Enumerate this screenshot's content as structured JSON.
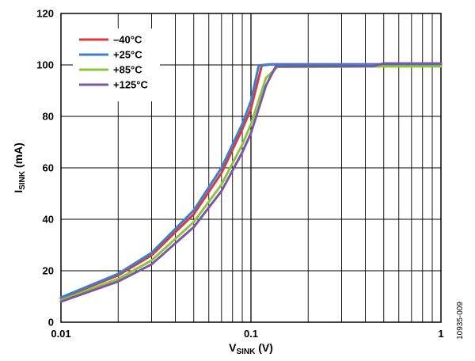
{
  "figure_id": "10935-009",
  "chart_data": {
    "type": "line",
    "xscale": "log",
    "xlim": [
      0.01,
      1
    ],
    "ylim": [
      0,
      120
    ],
    "xticks": [
      0.01,
      0.1,
      1
    ],
    "xtick_labels": [
      "0.01",
      "0.1",
      "1"
    ],
    "yticks": [
      0,
      20,
      40,
      60,
      80,
      100,
      120
    ],
    "ytick_labels": [
      "0",
      "20",
      "40",
      "60",
      "80",
      "100",
      "120"
    ],
    "xlabel": {
      "main": "V",
      "sub": "SINK",
      "unit": " (V)"
    },
    "ylabel": {
      "main": "I",
      "sub": "SINK",
      "unit": " (mA)"
    },
    "grid": true,
    "legend_position": "top-left",
    "series": [
      {
        "name": "–40°C",
        "color": "#d93a3a",
        "x": [
          0.01,
          0.02,
          0.03,
          0.05,
          0.07,
          0.09,
          0.1,
          0.114,
          0.13,
          0.2,
          0.5,
          1
        ],
        "y": [
          9.3,
          18.2,
          26,
          42,
          58,
          75,
          83,
          99.8,
          100.2,
          100.2,
          100.2,
          100.2
        ]
      },
      {
        "name": "+25°C",
        "color": "#3a7fd0",
        "x": [
          0.01,
          0.02,
          0.03,
          0.05,
          0.07,
          0.09,
          0.1,
          0.11,
          0.125,
          0.2,
          0.5,
          1
        ],
        "y": [
          9.6,
          18.8,
          27,
          43.5,
          60,
          77,
          86,
          99.8,
          100.2,
          100.2,
          100.2,
          100.2
        ]
      },
      {
        "name": "+85°C",
        "color": "#8cc43e",
        "x": [
          0.01,
          0.02,
          0.03,
          0.05,
          0.07,
          0.09,
          0.1,
          0.12,
          0.138,
          0.2,
          0.5,
          1
        ],
        "y": [
          8.6,
          16.8,
          24,
          39,
          53.5,
          69,
          77,
          95,
          99.2,
          99.2,
          99.4,
          99.4
        ]
      },
      {
        "name": "+125°C",
        "color": "#7b55a8",
        "x": [
          0.01,
          0.02,
          0.03,
          0.05,
          0.07,
          0.09,
          0.1,
          0.12,
          0.135,
          0.2,
          0.44,
          0.5,
          1
        ],
        "y": [
          8,
          15.8,
          22.5,
          37,
          51,
          66,
          73.5,
          92,
          99.4,
          99.5,
          99.5,
          100.6,
          100.6
        ]
      }
    ]
  }
}
